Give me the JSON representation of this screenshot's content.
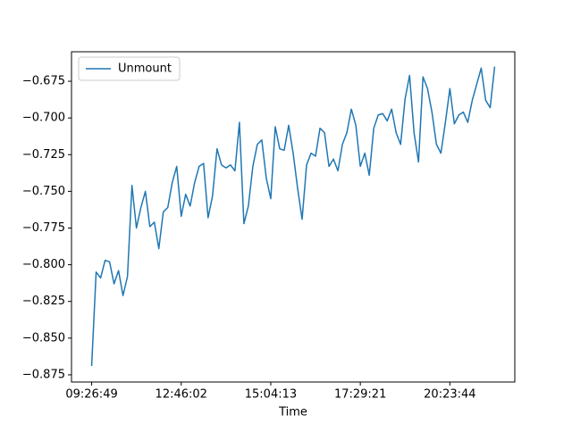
{
  "chart_data": {
    "type": "line",
    "xlabel": "Time",
    "categories": [
      "09:26:49",
      null,
      null,
      null,
      null,
      null,
      null,
      null,
      null,
      null,
      null,
      null,
      null,
      null,
      null,
      null,
      null,
      null,
      null,
      null,
      "12:46:02",
      null,
      null,
      null,
      null,
      null,
      null,
      null,
      null,
      null,
      null,
      null,
      null,
      null,
      null,
      null,
      null,
      null,
      null,
      null,
      "15:04:13",
      null,
      null,
      null,
      null,
      null,
      null,
      null,
      null,
      null,
      null,
      null,
      null,
      null,
      null,
      null,
      null,
      null,
      null,
      null,
      "17:29:21",
      null,
      null,
      null,
      null,
      null,
      null,
      null,
      null,
      null,
      null,
      null,
      null,
      null,
      null,
      null,
      null,
      null,
      null,
      null,
      "20:23:44",
      null,
      null,
      null,
      null,
      null,
      null,
      null,
      null,
      null,
      null
    ],
    "xlim": [
      -4.5,
      94.5
    ],
    "series": [
      {
        "name": "Unmount",
        "color": "#1f77b4",
        "values": [
          -0.869,
          -0.805,
          -0.809,
          -0.797,
          -0.798,
          -0.813,
          -0.804,
          -0.821,
          -0.808,
          -0.746,
          -0.775,
          -0.761,
          -0.75,
          -0.774,
          -0.771,
          -0.789,
          -0.764,
          -0.761,
          -0.744,
          -0.733,
          -0.767,
          -0.752,
          -0.76,
          -0.744,
          -0.733,
          -0.731,
          -0.768,
          -0.753,
          -0.721,
          -0.732,
          -0.734,
          -0.732,
          -0.736,
          -0.703,
          -0.772,
          -0.76,
          -0.733,
          -0.718,
          -0.715,
          -0.741,
          -0.755,
          -0.706,
          -0.721,
          -0.722,
          -0.705,
          -0.724,
          -0.748,
          -0.769,
          -0.732,
          -0.724,
          -0.726,
          -0.707,
          -0.71,
          -0.733,
          -0.728,
          -0.736,
          -0.718,
          -0.71,
          -0.694,
          -0.705,
          -0.733,
          -0.724,
          -0.739,
          -0.707,
          -0.698,
          -0.697,
          -0.702,
          -0.694,
          -0.71,
          -0.718,
          -0.687,
          -0.671,
          -0.71,
          -0.73,
          -0.672,
          -0.68,
          -0.696,
          -0.718,
          -0.724,
          -0.703,
          -0.68,
          -0.704,
          -0.698,
          -0.696,
          -0.703,
          -0.688,
          -0.677,
          -0.666,
          -0.688,
          -0.693,
          -0.665
        ]
      }
    ],
    "ylim": [
      -0.8799,
      -0.6549
    ],
    "yticks": [
      {
        "value": -0.875,
        "label": "−0.875"
      },
      {
        "value": -0.85,
        "label": "−0.850"
      },
      {
        "value": -0.825,
        "label": "−0.825"
      },
      {
        "value": -0.8,
        "label": "−0.800"
      },
      {
        "value": -0.775,
        "label": "−0.775"
      },
      {
        "value": -0.75,
        "label": "−0.750"
      },
      {
        "value": -0.725,
        "label": "−0.725"
      },
      {
        "value": -0.7,
        "label": "−0.700"
      },
      {
        "value": -0.675,
        "label": "−0.675"
      }
    ],
    "legend": "upper left",
    "grid": false
  }
}
